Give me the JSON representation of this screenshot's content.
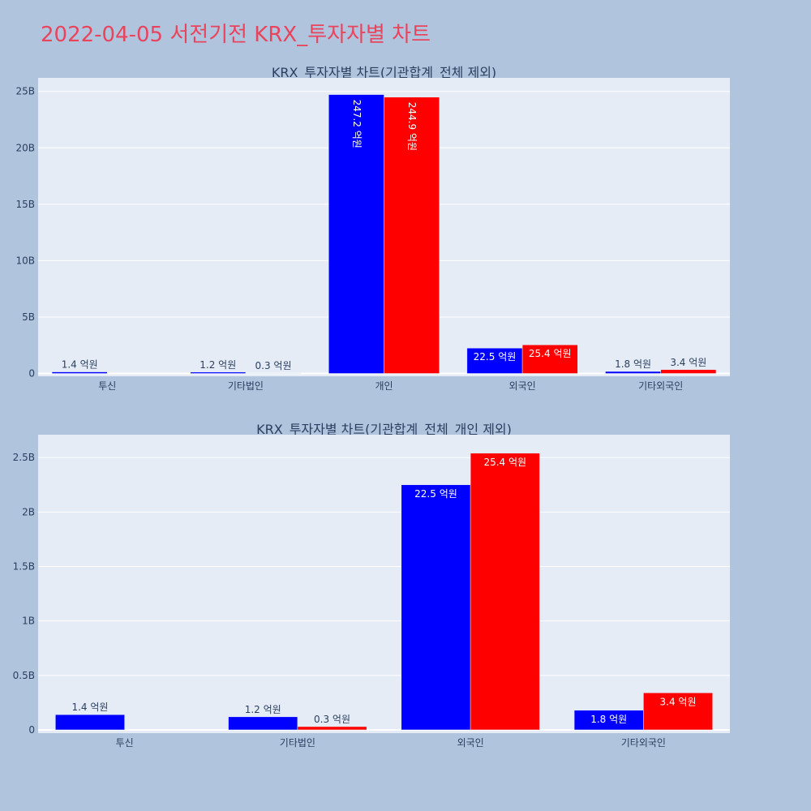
{
  "page_title": "2022-04-05 서전기전 KRX_투자자별 차트",
  "colors": {
    "background": "#b0c4de",
    "plot_bg": "#e5ecf6",
    "title": "#e8455c",
    "series_buy": "#0000ff",
    "series_sell": "#ff0000",
    "axis_text": "#2a3f5f"
  },
  "chart_data": [
    {
      "type": "bar",
      "title": "KRX_투자자별 차트(기관합계_전체 제외)",
      "categories": [
        "투신",
        "기타법인",
        "개인",
        "외국인",
        "기타외국인"
      ],
      "series": [
        {
          "color": "#0000ff",
          "values": [
            140000000,
            120000000,
            24720000000,
            2250000000,
            180000000
          ],
          "labels": [
            "1.4 억원",
            "1.2 억원",
            "247.2 억원",
            "22.5 억원",
            "1.8 억원"
          ]
        },
        {
          "color": "#ff0000",
          "values": [
            0,
            30000000,
            24490000000,
            2540000000,
            340000000
          ],
          "labels": [
            "",
            "0.3 억원",
            "244.9 억원",
            "25.4 억원",
            "3.4 억원"
          ]
        }
      ],
      "ylim": [
        -250000000,
        26200000000
      ],
      "yticks": [
        0,
        5000000000,
        10000000000,
        15000000000,
        20000000000,
        25000000000
      ],
      "yticklabels": [
        "0",
        "5B",
        "10B",
        "15B",
        "20B",
        "25B"
      ],
      "xlabel": "",
      "ylabel": "",
      "grid": true,
      "legend": "none"
    },
    {
      "type": "bar",
      "title": "KRX_투자자별 차트(기관합계_전체_개인 제외)",
      "categories": [
        "투신",
        "기타법인",
        "외국인",
        "기타외국인"
      ],
      "series": [
        {
          "color": "#0000ff",
          "values": [
            140000000,
            120000000,
            2250000000,
            180000000
          ],
          "labels": [
            "1.4 억원",
            "1.2 억원",
            "22.5 억원",
            "1.8 억원"
          ]
        },
        {
          "color": "#ff0000",
          "values": [
            0,
            30000000,
            2540000000,
            340000000
          ],
          "labels": [
            "",
            "0.3 억원",
            "25.4 억원",
            "3.4 억원"
          ]
        }
      ],
      "ylim": [
        -30000000,
        2710000000
      ],
      "yticks": [
        0,
        500000000,
        1000000000,
        1500000000,
        2000000000,
        2500000000
      ],
      "yticklabels": [
        "0",
        "0.5B",
        "1B",
        "1.5B",
        "2B",
        "2.5B"
      ],
      "xlabel": "",
      "ylabel": "",
      "grid": true,
      "legend": "none"
    }
  ]
}
